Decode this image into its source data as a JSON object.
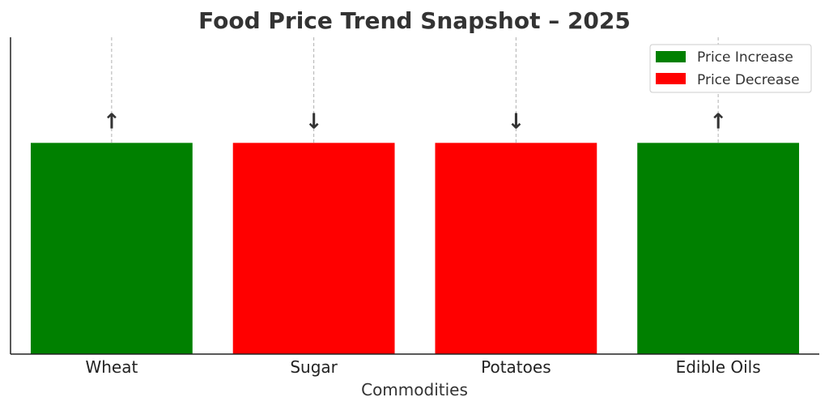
{
  "chart_data": {
    "type": "bar",
    "title": "Food Price Trend Snapshot – 2025",
    "xlabel": "Commodities",
    "ylabel": "",
    "categories": [
      "Wheat",
      "Sugar",
      "Potatoes",
      "Edible Oils"
    ],
    "values": [
      1,
      1,
      1,
      1
    ],
    "trend": [
      "up",
      "down",
      "down",
      "up"
    ],
    "arrows": [
      "↑",
      "↓",
      "↓",
      "↑"
    ],
    "ylim": [
      0,
      1.5
    ],
    "grid": "vertical dashed",
    "legend_position": "top-right",
    "legend": [
      {
        "label": "Price Increase",
        "color": "#008000"
      },
      {
        "label": "Price Decrease",
        "color": "#ff0000"
      }
    ],
    "colors": {
      "up": "#008000",
      "down": "#ff0000"
    }
  }
}
